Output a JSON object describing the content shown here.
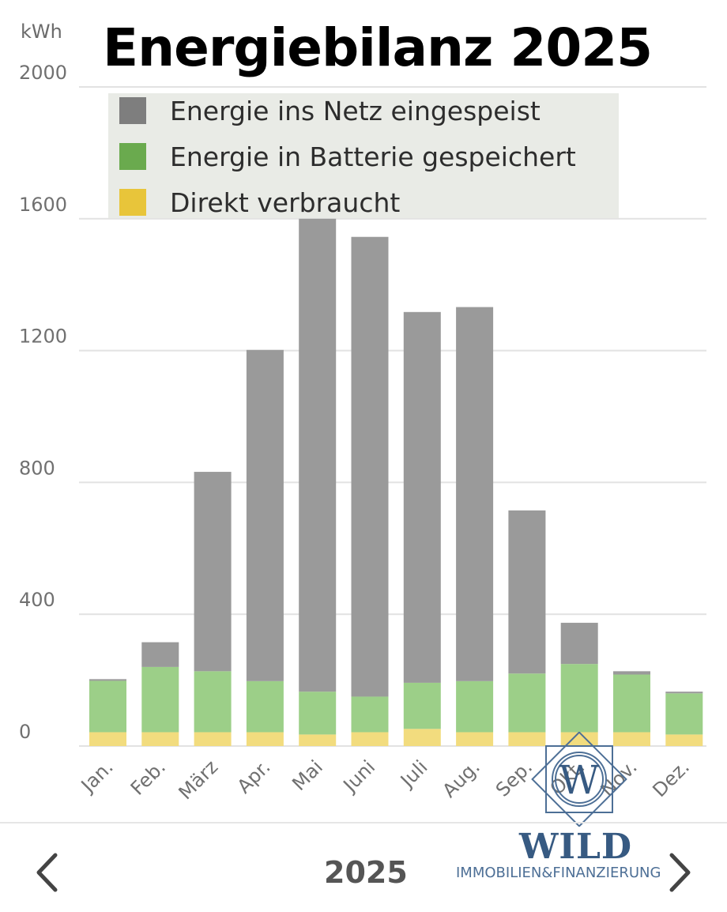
{
  "colors": {
    "grid": "#e2e2e2",
    "fed_in": "#9a9a9a",
    "battery": "#9ccf88",
    "direct": "#f2dc7e",
    "legend_fed_in": "#7e7e7e",
    "legend_battery": "#6aaa4e",
    "legend_direct": "#e8c53a",
    "logo": "#375a82"
  },
  "chart_data": {
    "type": "bar",
    "stacked": true,
    "title": "Energiebilanz 2025",
    "ylabel": "kWh",
    "ylim": [
      0,
      2000
    ],
    "yticks": [
      "0",
      "400",
      "800",
      "1200",
      "1600",
      "2000"
    ],
    "categories": [
      "Jan.",
      "Feb.",
      "März",
      "Apr.",
      "Mai",
      "Juni",
      "Juli",
      "Aug.",
      "Sep.",
      "Okt.",
      "Nov.",
      "Dez."
    ],
    "legend_position": "top",
    "series": [
      {
        "name": "Direkt verbraucht",
        "values": [
          42,
          42,
          42,
          42,
          35,
          42,
          52,
          42,
          42,
          42,
          42,
          35
        ]
      },
      {
        "name": "Energie in Batterie gespeichert",
        "values": [
          156,
          198,
          185,
          155,
          130,
          108,
          140,
          155,
          178,
          207,
          175,
          125
        ]
      },
      {
        "name": "Energie ins Netz eingespeist",
        "values": [
          5,
          75,
          605,
          1005,
          1435,
          1395,
          1125,
          1135,
          495,
          125,
          10,
          5
        ]
      }
    ]
  },
  "legend": {
    "items": [
      {
        "label": "Energie ins Netz eingespeist"
      },
      {
        "label": "Energie in Batterie gespeichert"
      },
      {
        "label": "Direkt verbraucht"
      }
    ]
  },
  "nav": {
    "year": "2025",
    "prev_icon": "chevron-left-icon",
    "next_icon": "chevron-right-icon"
  },
  "logo": {
    "word": "WILD",
    "tagline": "IMMOBILIEN&FINANZIERUNG",
    "monogram": "W"
  }
}
